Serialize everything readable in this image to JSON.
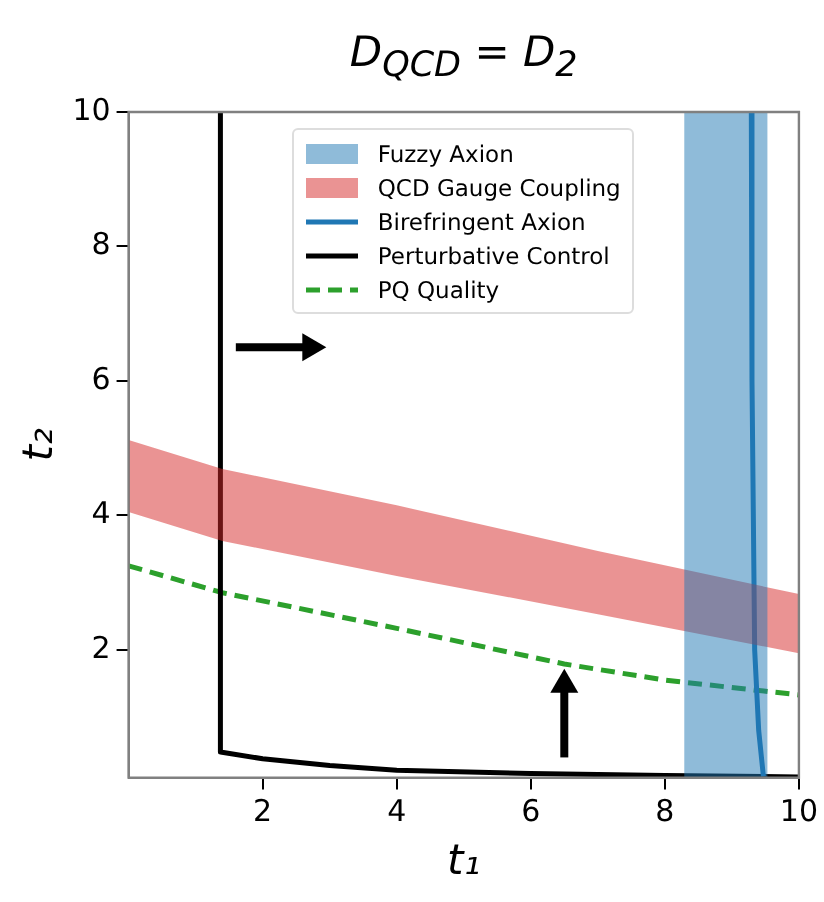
{
  "chart_data": {
    "type": "line",
    "title": "D$_{QCD}$ = D$_{2}$",
    "xlabel": "t₁",
    "ylabel": "t₂",
    "xlim": [
      0,
      10
    ],
    "ylim": [
      0.1,
      10
    ],
    "xticks": [
      2,
      4,
      6,
      8,
      10
    ],
    "yticks": [
      2,
      4,
      6,
      8,
      10
    ],
    "grid": false,
    "legend": "top",
    "marker": "none",
    "series": [
      {
        "name": "Fuzzy Axion",
        "type": "area",
        "color": "#1f77b4",
        "x": [
          8.29,
          9.53
        ],
        "values": [
          null,
          null
        ],
        "lower": [
          0.1,
          0.1
        ],
        "upper": [
          10,
          10
        ]
      },
      {
        "name": "QCD Gauge Coupling",
        "type": "area",
        "color": "#d62728",
        "x": [
          0,
          1.4,
          4,
          7,
          10
        ],
        "values": [
          null,
          null,
          null,
          null,
          null
        ],
        "lower": [
          4.05,
          3.62,
          3.1,
          2.53,
          1.95
        ],
        "upper": [
          5.12,
          4.69,
          4.15,
          3.47,
          2.83
        ]
      },
      {
        "name": "Birefringent Axion",
        "type": "line",
        "color": "#1f77b4",
        "x": [
          9.29,
          9.3,
          9.34,
          9.4,
          9.47
        ],
        "values": [
          10,
          6,
          2,
          0.8,
          0.12
        ]
      },
      {
        "name": "Perturbative Control",
        "type": "line",
        "color": "#000000",
        "x": [
          1.37,
          1.37,
          2,
          3,
          4,
          6,
          8,
          10
        ],
        "values": [
          10,
          0.48,
          0.38,
          0.28,
          0.21,
          0.16,
          0.13,
          0.11
        ]
      },
      {
        "name": "PQ Quality",
        "type": "line",
        "color": "#2ca02c",
        "line_style": "dashed",
        "x": [
          0,
          1.4,
          4,
          6.5,
          8,
          10
        ],
        "values": [
          3.25,
          2.85,
          2.32,
          1.79,
          1.55,
          1.33
        ]
      }
    ]
  }
}
